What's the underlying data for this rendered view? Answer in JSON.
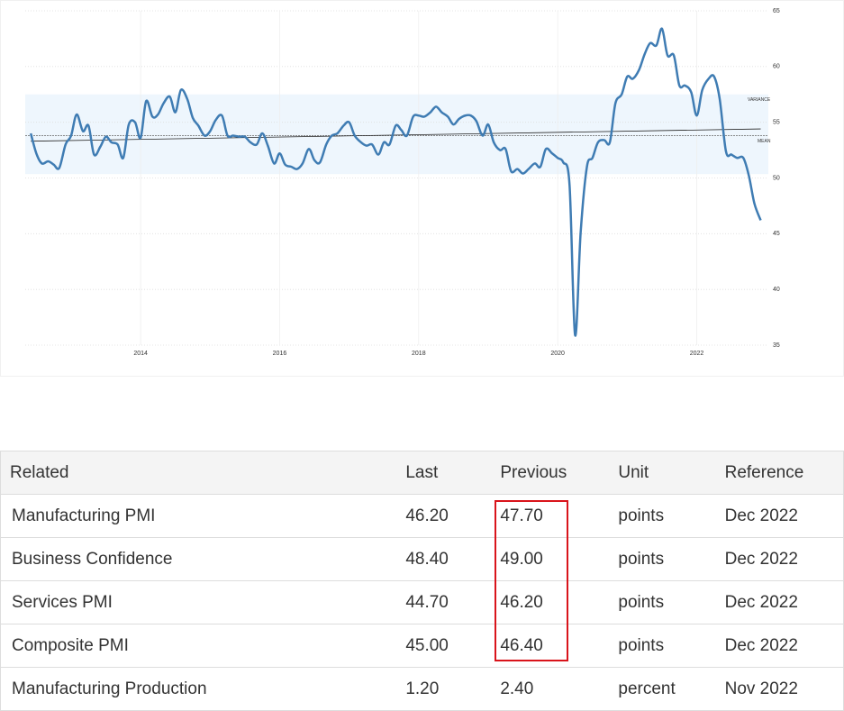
{
  "chart_data": {
    "type": "line",
    "color": "#3f7cb3",
    "x": [
      2012.42,
      2012.5,
      2012.58,
      2012.67,
      2012.75,
      2012.83,
      2012.92,
      2013.0,
      2013.08,
      2013.17,
      2013.25,
      2013.33,
      2013.42,
      2013.5,
      2013.58,
      2013.67,
      2013.75,
      2013.83,
      2013.92,
      2014.0,
      2014.08,
      2014.17,
      2014.25,
      2014.33,
      2014.42,
      2014.5,
      2014.58,
      2014.67,
      2014.75,
      2014.83,
      2014.92,
      2015.0,
      2015.08,
      2015.17,
      2015.25,
      2015.33,
      2015.42,
      2015.5,
      2015.58,
      2015.67,
      2015.75,
      2015.83,
      2015.92,
      2016.0,
      2016.08,
      2016.17,
      2016.25,
      2016.33,
      2016.42,
      2016.5,
      2016.58,
      2016.67,
      2016.75,
      2016.83,
      2016.92,
      2017.0,
      2017.08,
      2017.17,
      2017.25,
      2017.33,
      2017.42,
      2017.5,
      2017.58,
      2017.67,
      2017.75,
      2017.83,
      2017.92,
      2018.0,
      2018.08,
      2018.17,
      2018.25,
      2018.33,
      2018.42,
      2018.5,
      2018.58,
      2018.67,
      2018.75,
      2018.83,
      2018.92,
      2019.0,
      2019.08,
      2019.17,
      2019.25,
      2019.33,
      2019.42,
      2019.5,
      2019.58,
      2019.67,
      2019.75,
      2019.83,
      2019.92,
      2020.0,
      2020.08,
      2020.17,
      2020.25,
      2020.33,
      2020.42,
      2020.5,
      2020.58,
      2020.67,
      2020.75,
      2020.83,
      2020.92,
      2021.0,
      2021.08,
      2021.17,
      2021.25,
      2021.33,
      2021.42,
      2021.5,
      2021.58,
      2021.67,
      2021.75,
      2021.83,
      2021.92,
      2022.0,
      2022.08,
      2022.17,
      2022.25,
      2022.33,
      2022.42,
      2022.5,
      2022.58,
      2022.67,
      2022.75,
      2022.83,
      2022.92
    ],
    "values": [
      54.0,
      52.2,
      51.3,
      51.5,
      51.2,
      50.9,
      53.0,
      53.8,
      55.7,
      54.2,
      54.7,
      52.1,
      52.8,
      53.7,
      53.2,
      53.0,
      51.8,
      54.8,
      55.0,
      53.6,
      56.9,
      55.5,
      55.7,
      56.7,
      57.3,
      55.9,
      57.9,
      57.1,
      55.4,
      54.7,
      53.8,
      54.2,
      55.2,
      55.6,
      53.8,
      53.8,
      53.7,
      53.7,
      53.2,
      53.0,
      54.0,
      52.9,
      51.3,
      52.2,
      51.2,
      51.0,
      50.8,
      51.3,
      52.6,
      51.6,
      51.4,
      53.0,
      53.8,
      54.0,
      54.7,
      55.0,
      53.8,
      53.2,
      52.9,
      53.0,
      52.1,
      53.2,
      53.0,
      54.7,
      54.3,
      53.8,
      55.5,
      55.6,
      55.5,
      55.9,
      56.4,
      55.9,
      55.5,
      54.8,
      55.3,
      55.6,
      55.6,
      55.1,
      53.8,
      54.8,
      53.2,
      52.5,
      52.6,
      50.6,
      50.8,
      50.4,
      50.8,
      51.3,
      51.0,
      52.6,
      52.2,
      51.8,
      51.4,
      49.4,
      35.9,
      45.1,
      51.0,
      51.8,
      53.2,
      53.4,
      53.2,
      56.7,
      57.5,
      59.1,
      58.9,
      59.7,
      61.1,
      62.1,
      61.9,
      63.4,
      61.0,
      61.0,
      58.3,
      58.3,
      57.7,
      55.6,
      57.9,
      58.9,
      59.1,
      57.1,
      52.4,
      52.1,
      51.8,
      51.8,
      50.2,
      47.7,
      46.2
    ],
    "xlim": [
      2012.34,
      2023.03
    ],
    "xticks": [
      2014,
      2016,
      2018,
      2020,
      2022
    ],
    "ylim": [
      35,
      65
    ],
    "yticks": [
      35,
      40,
      45,
      50,
      55,
      60,
      65
    ],
    "grid": true,
    "variance": {
      "label": "VARIANCE",
      "range": [
        50.35,
        57.5
      ],
      "color": "#eef6fd"
    },
    "mean": {
      "label": "MEAN",
      "value": 53.8
    },
    "trend": {
      "x": [
        2012.42,
        2022.92
      ],
      "values": [
        53.3,
        54.4
      ]
    }
  },
  "table": {
    "header": [
      "Related",
      "Last",
      "Previous",
      "Unit",
      "Reference"
    ],
    "rows": [
      [
        "Manufacturing PMI",
        "46.20",
        "47.70",
        "points",
        "Dec 2022"
      ],
      [
        "Business Confidence",
        "48.40",
        "49.00",
        "points",
        "Dec 2022"
      ],
      [
        "Services PMI",
        "44.70",
        "46.20",
        "points",
        "Dec 2022"
      ],
      [
        "Composite PMI",
        "45.00",
        "46.40",
        "points",
        "Dec 2022"
      ],
      [
        "Manufacturing Production",
        "1.20",
        "2.40",
        "percent",
        "Nov 2022"
      ]
    ]
  }
}
